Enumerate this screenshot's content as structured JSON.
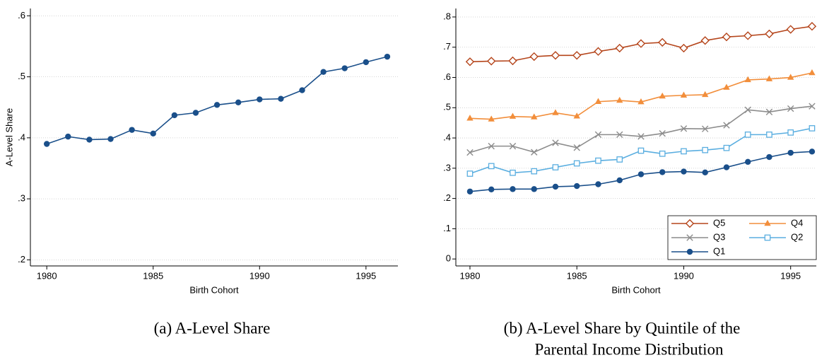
{
  "chart_data": [
    {
      "type": "line",
      "caption": [
        "(a) A-Level Share"
      ],
      "xlabel": "Birth Cohort",
      "ylabel": "A-Level Share",
      "x": [
        1980,
        1981,
        1982,
        1983,
        1984,
        1985,
        1986,
        1987,
        1988,
        1989,
        1990,
        1991,
        1992,
        1993,
        1994,
        1995,
        1996
      ],
      "series": [
        {
          "color": "#1a4f8a",
          "marker": "circle",
          "values": [
            0.39,
            0.402,
            0.397,
            0.398,
            0.413,
            0.407,
            0.437,
            0.441,
            0.454,
            0.458,
            0.463,
            0.464,
            0.478,
            0.508,
            0.514,
            0.524,
            0.533
          ]
        }
      ],
      "xlim": [
        1979.23,
        1996.5
      ],
      "xticks": [
        1980,
        1985,
        1990,
        1995
      ],
      "ylim": [
        0.19,
        0.612
      ],
      "yticks": [
        {
          "value": 0.2,
          "label": ".2"
        },
        {
          "value": 0.3,
          "label": ".3"
        },
        {
          "value": 0.4,
          "label": ".4"
        },
        {
          "value": 0.5,
          "label": ".5"
        },
        {
          "value": 0.6,
          "label": ".6"
        }
      ],
      "grid": true,
      "legend": false
    },
    {
      "type": "line",
      "caption": [
        "(b) A-Level Share by Quintile of the",
        "Parental Income Distribution"
      ],
      "xlabel": "Birth Cohort",
      "x": [
        1980,
        1981,
        1982,
        1983,
        1984,
        1985,
        1986,
        1987,
        1988,
        1989,
        1990,
        1991,
        1992,
        1993,
        1994,
        1995,
        1996
      ],
      "series": [
        {
          "name": "Q5",
          "color": "#b5451b",
          "marker": "diamond-open",
          "values": [
            0.652,
            0.654,
            0.655,
            0.669,
            0.673,
            0.673,
            0.686,
            0.697,
            0.712,
            0.716,
            0.697,
            0.722,
            0.734,
            0.738,
            0.744,
            0.759,
            0.769
          ]
        },
        {
          "name": "Q4",
          "color": "#f28e3b",
          "marker": "triangle",
          "values": [
            0.465,
            0.462,
            0.471,
            0.469,
            0.483,
            0.472,
            0.52,
            0.524,
            0.519,
            0.538,
            0.541,
            0.543,
            0.567,
            0.592,
            0.595,
            0.6,
            0.615
          ]
        },
        {
          "name": "Q3",
          "color": "#8c8c8c",
          "marker": "x",
          "values": [
            0.352,
            0.373,
            0.373,
            0.353,
            0.384,
            0.368,
            0.411,
            0.411,
            0.405,
            0.415,
            0.431,
            0.43,
            0.442,
            0.493,
            0.486,
            0.497,
            0.505
          ]
        },
        {
          "name": "Q2",
          "color": "#5aaee0",
          "marker": "square-open",
          "values": [
            0.282,
            0.307,
            0.285,
            0.29,
            0.303,
            0.316,
            0.325,
            0.329,
            0.358,
            0.348,
            0.356,
            0.36,
            0.367,
            0.411,
            0.411,
            0.418,
            0.432
          ]
        },
        {
          "name": "Q1",
          "color": "#1a4f8a",
          "marker": "circle",
          "values": [
            0.223,
            0.23,
            0.231,
            0.231,
            0.239,
            0.241,
            0.247,
            0.26,
            0.28,
            0.287,
            0.289,
            0.286,
            0.303,
            0.321,
            0.337,
            0.351,
            0.355
          ]
        }
      ],
      "xlim": [
        1979.34,
        1996.2
      ],
      "xticks": [
        1980,
        1985,
        1990,
        1995
      ],
      "ylim": [
        -0.023,
        0.828
      ],
      "yticks": [
        0,
        {
          "value": 0.1,
          "label": ".1"
        },
        {
          "value": 0.2,
          "label": ".2"
        },
        {
          "value": 0.3,
          "label": ".3"
        },
        {
          "value": 0.4,
          "label": ".4"
        },
        {
          "value": 0.5,
          "label": ".5"
        },
        {
          "value": 0.6,
          "label": ".6"
        },
        {
          "value": 0.7,
          "label": ".7"
        },
        {
          "value": 0.8,
          "label": ".8"
        }
      ],
      "grid": true,
      "legend": "lower right"
    }
  ]
}
